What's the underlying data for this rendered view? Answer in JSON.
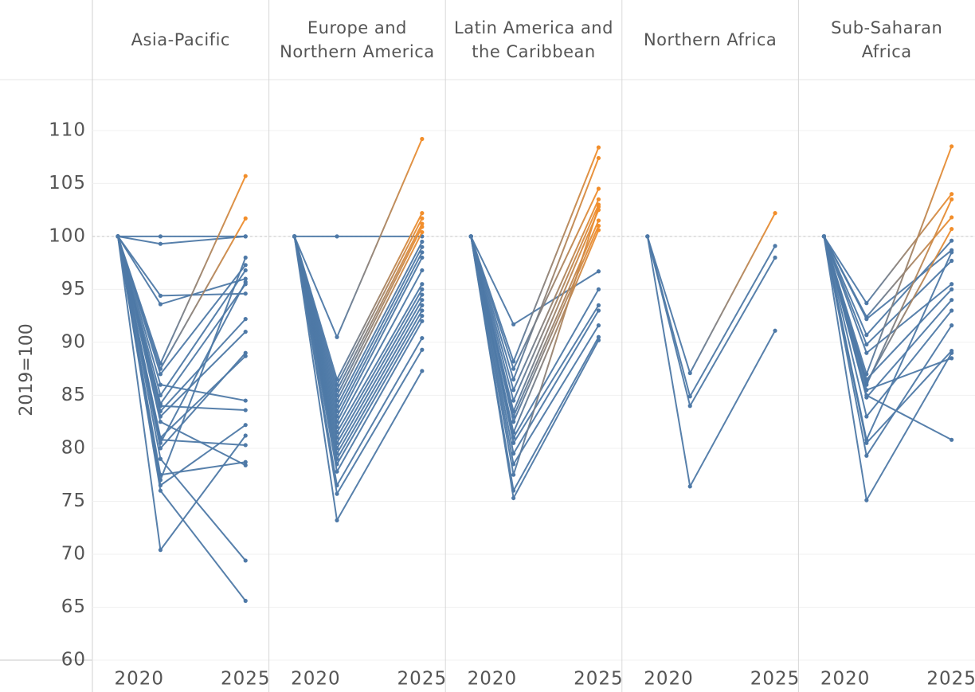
{
  "chart_data": [
    {
      "type": "line",
      "title": "Asia-Pacific",
      "ylabel": "2019=100",
      "x": [
        2019,
        2021,
        2025
      ],
      "xlim": [
        2017.8,
        2026.1
      ],
      "xticks": [
        2020,
        2025
      ],
      "ylim": [
        60,
        114.8
      ],
      "yticks": [
        60,
        65,
        70,
        75,
        80,
        85,
        90,
        95,
        100,
        105,
        110
      ],
      "reference_line": 100,
      "start_color": "#4e79a7",
      "series": [
        {
          "color": "#4e79a7",
          "values": [
            100,
            100,
            100
          ]
        },
        {
          "color": "#4e79a7",
          "values": [
            100,
            99.3,
            100
          ]
        },
        {
          "color": "#4e79a7",
          "values": [
            100,
            94.4,
            94.6
          ]
        },
        {
          "color": "#4e79a7",
          "values": [
            100,
            93.6,
            96
          ]
        },
        {
          "color": "#f28e2b",
          "values": [
            100,
            88,
            105.7
          ]
        },
        {
          "color": "#f28e2b",
          "values": [
            100,
            87.5,
            101.7
          ]
        },
        {
          "color": "#4e79a7",
          "values": [
            100,
            87,
            97.3
          ]
        },
        {
          "color": "#4e79a7",
          "values": [
            100,
            86,
            84.5
          ]
        },
        {
          "color": "#4e79a7",
          "values": [
            100,
            85,
            96.8
          ]
        },
        {
          "color": "#4e79a7",
          "values": [
            100,
            84.2,
            95.5
          ]
        },
        {
          "color": "#4e79a7",
          "values": [
            100,
            84,
            83.6
          ]
        },
        {
          "color": "#4e79a7",
          "values": [
            100,
            83.5,
            92.2
          ]
        },
        {
          "color": "#4e79a7",
          "values": [
            100,
            83,
            91
          ]
        },
        {
          "color": "#4e79a7",
          "values": [
            100,
            82.5,
            78.4
          ]
        },
        {
          "color": "#4e79a7",
          "values": [
            100,
            81,
            88.7
          ]
        },
        {
          "color": "#4e79a7",
          "values": [
            100,
            80.5,
            95.7
          ]
        },
        {
          "color": "#4e79a7",
          "values": [
            100,
            80,
            89
          ]
        },
        {
          "color": "#4e79a7",
          "values": [
            100,
            79,
            69.4
          ]
        },
        {
          "color": "#4e79a7",
          "values": [
            100,
            77,
            98
          ]
        },
        {
          "color": "#4e79a7",
          "values": [
            100,
            76.5,
            82.2
          ]
        },
        {
          "color": "#4e79a7",
          "values": [
            100,
            76,
            65.6
          ]
        },
        {
          "color": "#4e79a7",
          "values": [
            100,
            70.4,
            81.2
          ]
        },
        {
          "color": "#4e79a7",
          "values": [
            100,
            77.5,
            78.7
          ]
        },
        {
          "color": "#4e79a7",
          "values": [
            100,
            80.8,
            80.3
          ]
        }
      ]
    },
    {
      "type": "line",
      "title": "Europe and\nNorthern America",
      "x": [
        2019,
        2021,
        2025
      ],
      "xlim": [
        2017.8,
        2026.1
      ],
      "xticks": [
        2020,
        2025
      ],
      "ylim": [
        60,
        114.8
      ],
      "yticks": [
        60,
        65,
        70,
        75,
        80,
        85,
        90,
        95,
        100,
        105,
        110
      ],
      "reference_line": 100,
      "start_color": "#4e79a7",
      "series": [
        {
          "color": "#4e79a7",
          "values": [
            100,
            100,
            100
          ]
        },
        {
          "color": "#f28e2b",
          "values": [
            100,
            90.5,
            109.2
          ]
        },
        {
          "color": "#f28e2b",
          "values": [
            100,
            86.5,
            102.2
          ]
        },
        {
          "color": "#f28e2b",
          "values": [
            100,
            86,
            101.7
          ]
        },
        {
          "color": "#f28e2b",
          "values": [
            100,
            85.5,
            101.2
          ]
        },
        {
          "color": "#f28e2b",
          "values": [
            100,
            85,
            100.9
          ]
        },
        {
          "color": "#f28e2b",
          "values": [
            100,
            84.5,
            100.4
          ]
        },
        {
          "color": "#4e79a7",
          "values": [
            100,
            84,
            99.5
          ]
        },
        {
          "color": "#4e79a7",
          "values": [
            100,
            83.5,
            99
          ]
        },
        {
          "color": "#4e79a7",
          "values": [
            100,
            83,
            98.5
          ]
        },
        {
          "color": "#4e79a7",
          "values": [
            100,
            82.5,
            98
          ]
        },
        {
          "color": "#4e79a7",
          "values": [
            100,
            82,
            96.8
          ]
        },
        {
          "color": "#4e79a7",
          "values": [
            100,
            81.5,
            95.5
          ]
        },
        {
          "color": "#4e79a7",
          "values": [
            100,
            81,
            95
          ]
        },
        {
          "color": "#4e79a7",
          "values": [
            100,
            80.5,
            94.5
          ]
        },
        {
          "color": "#4e79a7",
          "values": [
            100,
            80,
            94
          ]
        },
        {
          "color": "#4e79a7",
          "values": [
            100,
            79.5,
            93.5
          ]
        },
        {
          "color": "#4e79a7",
          "values": [
            100,
            79,
            93
          ]
        },
        {
          "color": "#4e79a7",
          "values": [
            100,
            78.5,
            92.5
          ]
        },
        {
          "color": "#4e79a7",
          "values": [
            100,
            77.8,
            92
          ]
        },
        {
          "color": "#4e79a7",
          "values": [
            100,
            76.5,
            90.4
          ]
        },
        {
          "color": "#4e79a7",
          "values": [
            100,
            75.7,
            89.3
          ]
        },
        {
          "color": "#4e79a7",
          "values": [
            100,
            73.2,
            87.3
          ]
        }
      ]
    },
    {
      "type": "line",
      "title": "Latin America and\nthe Caribbean",
      "x": [
        2019,
        2021,
        2025
      ],
      "xlim": [
        2017.8,
        2026.1
      ],
      "xticks": [
        2020,
        2025
      ],
      "ylim": [
        60,
        114.8
      ],
      "yticks": [
        60,
        65,
        70,
        75,
        80,
        85,
        90,
        95,
        100,
        105,
        110
      ],
      "reference_line": 100,
      "start_color": "#4e79a7",
      "series": [
        {
          "color": "#4e79a7",
          "values": [
            100,
            91.7,
            96.7
          ]
        },
        {
          "color": "#f28e2b",
          "values": [
            100,
            88.2,
            108.4
          ]
        },
        {
          "color": "#f28e2b",
          "values": [
            100,
            87.5,
            104.5
          ]
        },
        {
          "color": "#f28e2b",
          "values": [
            100,
            86.5,
            107.4
          ]
        },
        {
          "color": "#f28e2b",
          "values": [
            100,
            85.5,
            103.5
          ]
        },
        {
          "color": "#f28e2b",
          "values": [
            100,
            84.5,
            103
          ]
        },
        {
          "color": "#f28e2b",
          "values": [
            100,
            83.5,
            102.5
          ]
        },
        {
          "color": "#f28e2b",
          "values": [
            100,
            83,
            101.5
          ]
        },
        {
          "color": "#f28e2b",
          "values": [
            100,
            82.5,
            101
          ]
        },
        {
          "color": "#f28e2b",
          "values": [
            100,
            81.5,
            100.6
          ]
        },
        {
          "color": "#4e79a7",
          "values": [
            100,
            81,
            95
          ]
        },
        {
          "color": "#4e79a7",
          "values": [
            100,
            80.5,
            93.5
          ]
        },
        {
          "color": "#4e79a7",
          "values": [
            100,
            79.5,
            93
          ]
        },
        {
          "color": "#4e79a7",
          "values": [
            100,
            78.5,
            91.6
          ]
        },
        {
          "color": "#4e79a7",
          "values": [
            100,
            76,
            90.5
          ]
        },
        {
          "color": "#4e79a7",
          "values": [
            100,
            75.3,
            90.2
          ]
        },
        {
          "color": "#f28e2b",
          "values": [
            100,
            77.5,
            102.8
          ]
        }
      ]
    },
    {
      "type": "line",
      "title": "Northern Africa",
      "x": [
        2019,
        2021,
        2025
      ],
      "xlim": [
        2017.8,
        2026.1
      ],
      "xticks": [
        2020,
        2025
      ],
      "ylim": [
        60,
        114.8
      ],
      "yticks": [
        60,
        65,
        70,
        75,
        80,
        85,
        90,
        95,
        100,
        105,
        110
      ],
      "reference_line": 100,
      "start_color": "#4e79a7",
      "series": [
        {
          "color": "#f28e2b",
          "values": [
            100,
            87.1,
            102.2
          ]
        },
        {
          "color": "#4e79a7",
          "values": [
            100,
            84.9,
            99.1
          ]
        },
        {
          "color": "#4e79a7",
          "values": [
            100,
            84,
            98
          ]
        },
        {
          "color": "#4e79a7",
          "values": [
            100,
            76.4,
            91.1
          ]
        }
      ]
    },
    {
      "type": "line",
      "title": "Sub-Saharan\nAfrica",
      "x": [
        2019,
        2021,
        2025
      ],
      "xlim": [
        2017.8,
        2026.1
      ],
      "xticks": [
        2020,
        2025
      ],
      "ylim": [
        60,
        114.8
      ],
      "yticks": [
        60,
        65,
        70,
        75,
        80,
        85,
        90,
        95,
        100,
        105,
        110
      ],
      "reference_line": 100,
      "start_color": "#4e79a7",
      "series": [
        {
          "color": "#f28e2b",
          "values": [
            100,
            93.7,
            104
          ]
        },
        {
          "color": "#f28e2b",
          "values": [
            100,
            92.4,
            101.8
          ]
        },
        {
          "color": "#4e79a7",
          "values": [
            100,
            92.2,
            98.7
          ]
        },
        {
          "color": "#4e79a7",
          "values": [
            100,
            90.7,
            99.6
          ]
        },
        {
          "color": "#4e79a7",
          "values": [
            100,
            89.8,
            97.7
          ]
        },
        {
          "color": "#4e79a7",
          "values": [
            100,
            89,
            95.5
          ]
        },
        {
          "color": "#f28e2b",
          "values": [
            100,
            87,
            108.5
          ]
        },
        {
          "color": "#4e79a7",
          "values": [
            100,
            86.5,
            95
          ]
        },
        {
          "color": "#f28e2b",
          "values": [
            100,
            86,
            103.5
          ]
        },
        {
          "color": "#4e79a7",
          "values": [
            100,
            85.5,
            88.5
          ]
        },
        {
          "color": "#4e79a7",
          "values": [
            100,
            85,
            80.8
          ]
        },
        {
          "color": "#4e79a7",
          "values": [
            100,
            83,
            93
          ]
        },
        {
          "color": "#4e79a7",
          "values": [
            100,
            80.8,
            98.5
          ]
        },
        {
          "color": "#4e79a7",
          "values": [
            100,
            80.5,
            89.2
          ]
        },
        {
          "color": "#4e79a7",
          "values": [
            100,
            79.3,
            91.6
          ]
        },
        {
          "color": "#4e79a7",
          "values": [
            100,
            75.1,
            89
          ]
        },
        {
          "color": "#f28e2b",
          "values": [
            100,
            86.2,
            100.7
          ]
        },
        {
          "color": "#4e79a7",
          "values": [
            100,
            84.8,
            94
          ]
        }
      ]
    }
  ]
}
